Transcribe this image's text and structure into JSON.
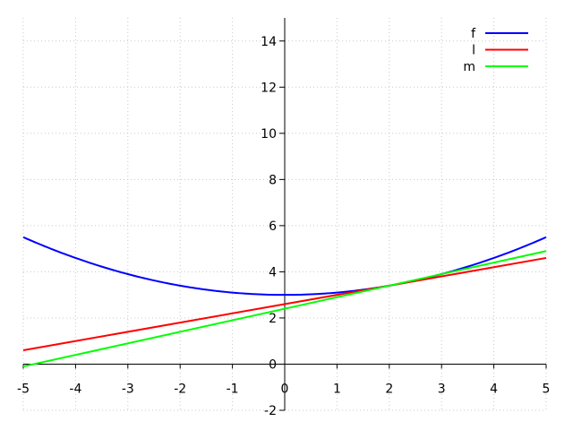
{
  "chart_data": {
    "type": "line",
    "title": "",
    "xlabel": "",
    "ylabel": "",
    "xlim": [
      -5,
      5
    ],
    "ylim": [
      -2,
      15
    ],
    "grid": true,
    "axes_through_origin": true,
    "legend_position": "top-right",
    "x_ticks": [
      -5,
      -4,
      -3,
      -2,
      -1,
      0,
      1,
      2,
      3,
      4,
      5
    ],
    "x_tick_labels": [
      "-5",
      "-4",
      "-3",
      "-2",
      "-1",
      "0",
      "1",
      "2",
      "3",
      "4",
      "5"
    ],
    "y_ticks": [
      -2,
      0,
      2,
      4,
      6,
      8,
      10,
      12,
      14
    ],
    "y_tick_labels": [
      "-2",
      "0",
      "2",
      "4",
      "6",
      "8",
      "10",
      "12",
      "14"
    ],
    "series": [
      {
        "name": "f",
        "color": "#0000ff",
        "x": [
          -5,
          -4,
          -3,
          -2,
          -1,
          0,
          1,
          2,
          3,
          4,
          5
        ],
        "y": [
          5.5,
          4.6,
          3.9,
          3.4,
          3.1,
          3.0,
          3.1,
          3.4,
          3.9,
          4.6,
          5.5
        ]
      },
      {
        "name": "l",
        "color": "#ff0000",
        "x": [
          -5,
          5
        ],
        "y": [
          0.6,
          4.6
        ]
      },
      {
        "name": "m",
        "color": "#00ff00",
        "x": [
          -5,
          5
        ],
        "y": [
          -0.1,
          4.9
        ]
      }
    ]
  }
}
